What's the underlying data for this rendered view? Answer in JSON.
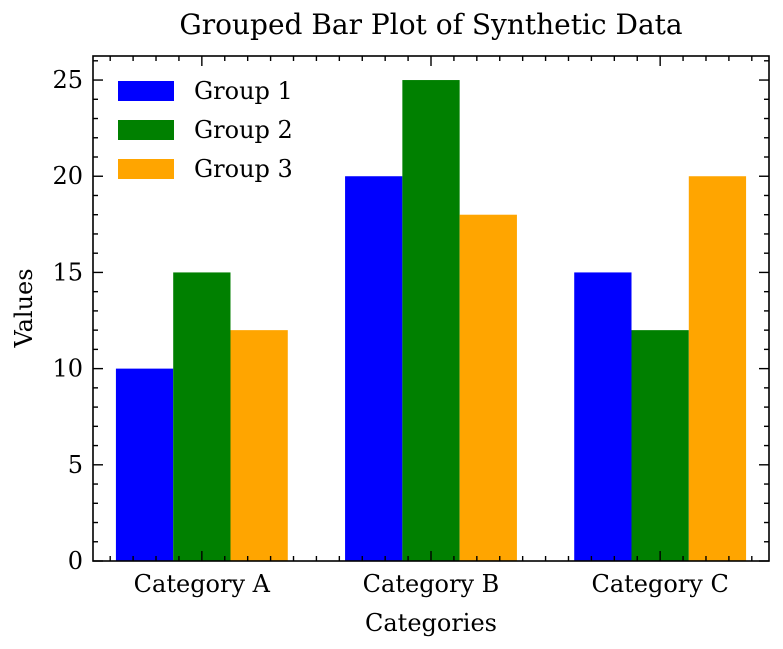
{
  "chart_data": {
    "type": "bar",
    "title": "Grouped Bar Plot of Synthetic Data",
    "xlabel": "Categories",
    "ylabel": "Values",
    "categories": [
      "Category A",
      "Category B",
      "Category C"
    ],
    "series": [
      {
        "name": "Group 1",
        "values": [
          10,
          20,
          15
        ],
        "color": "#0000ff"
      },
      {
        "name": "Group 2",
        "values": [
          15,
          25,
          12
        ],
        "color": "#008000"
      },
      {
        "name": "Group 3",
        "values": [
          12,
          18,
          20
        ],
        "color": "#ffa500"
      }
    ],
    "ylim": [
      0,
      26.25
    ],
    "yticks": [
      0,
      5,
      10,
      15,
      20,
      25
    ],
    "yminor_step": 1,
    "grid": false,
    "legend_position": "top-left"
  }
}
